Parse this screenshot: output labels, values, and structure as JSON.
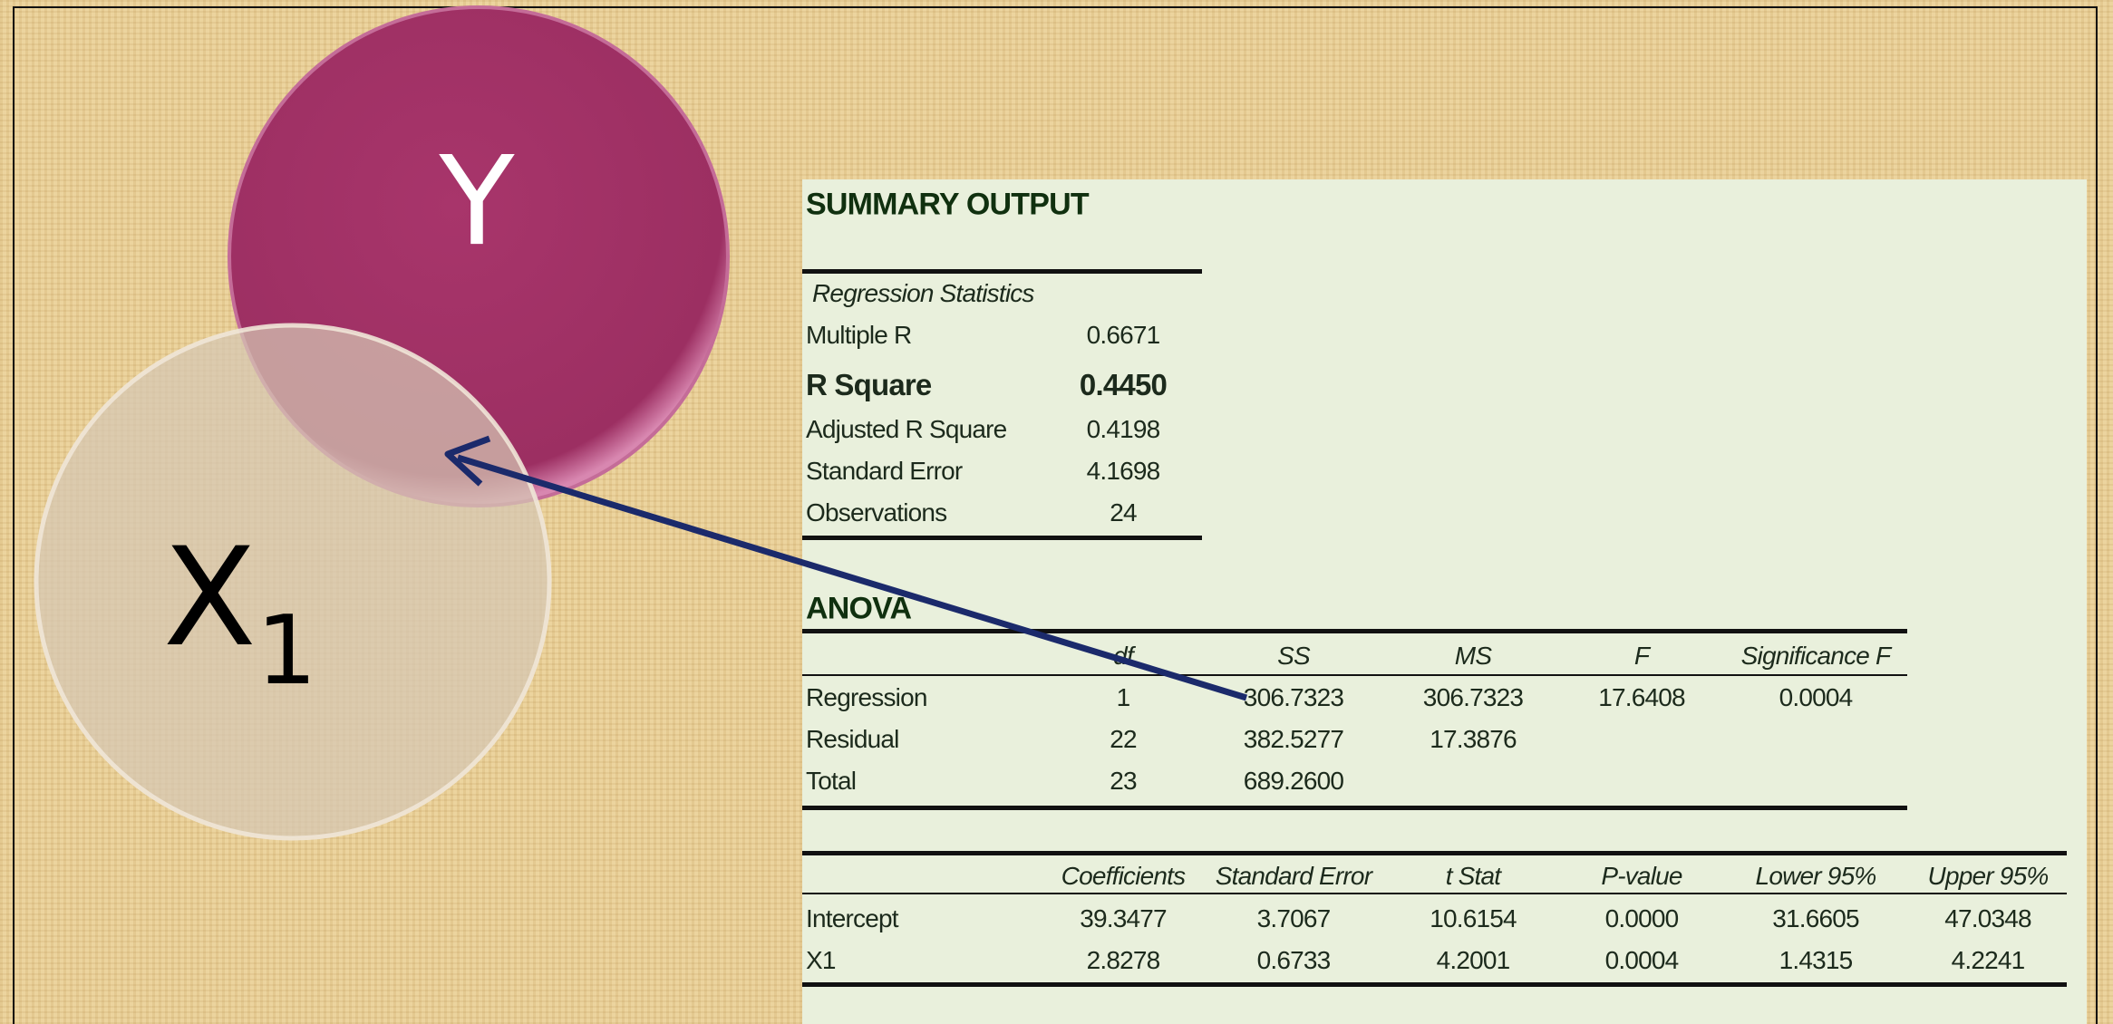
{
  "venn": {
    "y_label": "Y",
    "x_label": "X",
    "x_subscript": "1"
  },
  "summary": {
    "title": "SUMMARY OUTPUT",
    "regression_statistics": {
      "header": "Regression Statistics",
      "rows": [
        [
          "Multiple R",
          "0.6671"
        ],
        [
          "R Square",
          "0.4450"
        ],
        [
          "Adjusted R Square",
          "0.4198"
        ],
        [
          "Standard Error",
          "4.1698"
        ],
        [
          "Observations",
          "24"
        ]
      ]
    }
  },
  "anova": {
    "title": "ANOVA",
    "header": [
      null,
      "df",
      "SS",
      "MS",
      "F",
      "Significance F"
    ],
    "rows": [
      [
        "Regression",
        "1",
        "306.7323",
        "306.7323",
        "17.6408",
        "0.0004"
      ],
      [
        "Residual",
        "22",
        "382.5277",
        "17.3876",
        null,
        null
      ],
      [
        "Total",
        "23",
        "689.2600",
        null,
        null,
        null
      ]
    ]
  },
  "coefficients": {
    "header": [
      null,
      "Coefficients",
      "Standard Error",
      "t Stat",
      "P-value",
      "Lower 95%",
      "Upper 95%"
    ],
    "rows": [
      [
        "Intercept",
        "39.3477",
        "3.7067",
        "10.6154",
        "0.0000",
        "31.6605",
        "47.0348"
      ],
      [
        "X1",
        "2.8278",
        "0.6733",
        "4.2001",
        "0.0004",
        "1.4315",
        "4.2241"
      ]
    ]
  }
}
